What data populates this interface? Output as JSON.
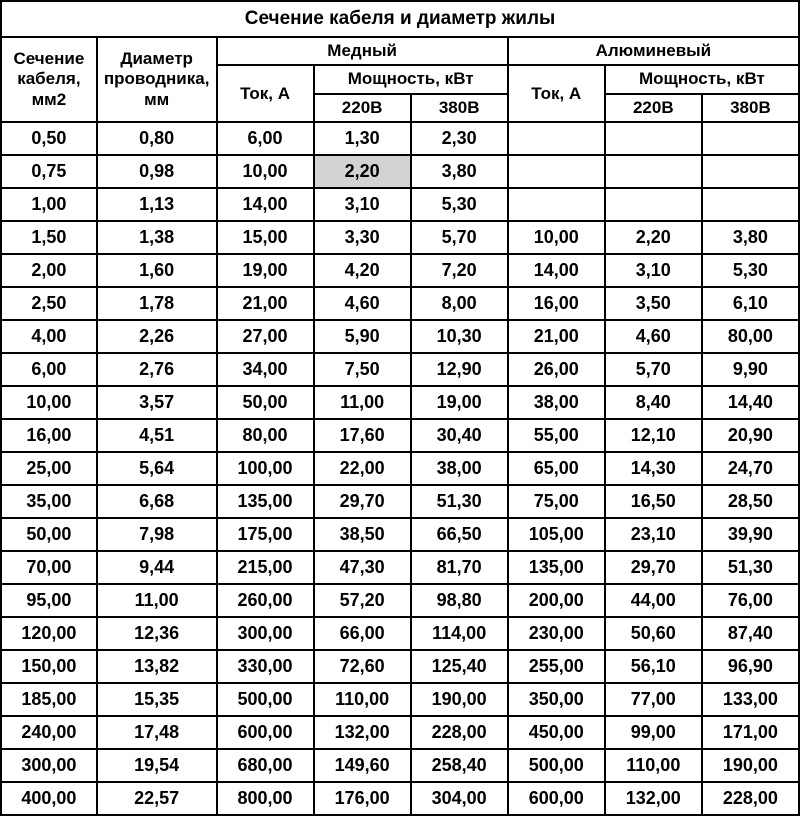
{
  "title": "Сечение кабеля и диаметр жилы",
  "headers": {
    "section": "Сечение кабеля, мм2",
    "diameter": "Диаметр проводника, мм",
    "copper": "Медный",
    "aluminum": "Алюминевый",
    "current": "Ток, А",
    "power": "Мощность, кВт",
    "v220": "220В",
    "v380": "380В"
  },
  "styling": {
    "background_color": "#ffffff",
    "border_color": "#000000",
    "highlight_color": "#d3d3d3",
    "font_family": "Arial",
    "title_fontsize": 19,
    "header_fontsize": 17,
    "data_fontsize": 18,
    "font_weight": "bold"
  },
  "highlighted_cell": {
    "row": 1,
    "col": "copper_220"
  },
  "rows": [
    {
      "section": "0,50",
      "diameter": "0,80",
      "copper_current": "6,00",
      "copper_220": "1,30",
      "copper_380": "2,30",
      "alum_current": "",
      "alum_220": "",
      "alum_380": ""
    },
    {
      "section": "0,75",
      "diameter": "0,98",
      "copper_current": "10,00",
      "copper_220": "2,20",
      "copper_380": "3,80",
      "alum_current": "",
      "alum_220": "",
      "alum_380": ""
    },
    {
      "section": "1,00",
      "diameter": "1,13",
      "copper_current": "14,00",
      "copper_220": "3,10",
      "copper_380": "5,30",
      "alum_current": "",
      "alum_220": "",
      "alum_380": ""
    },
    {
      "section": "1,50",
      "diameter": "1,38",
      "copper_current": "15,00",
      "copper_220": "3,30",
      "copper_380": "5,70",
      "alum_current": "10,00",
      "alum_220": "2,20",
      "alum_380": "3,80"
    },
    {
      "section": "2,00",
      "diameter": "1,60",
      "copper_current": "19,00",
      "copper_220": "4,20",
      "copper_380": "7,20",
      "alum_current": "14,00",
      "alum_220": "3,10",
      "alum_380": "5,30"
    },
    {
      "section": "2,50",
      "diameter": "1,78",
      "copper_current": "21,00",
      "copper_220": "4,60",
      "copper_380": "8,00",
      "alum_current": "16,00",
      "alum_220": "3,50",
      "alum_380": "6,10"
    },
    {
      "section": "4,00",
      "diameter": "2,26",
      "copper_current": "27,00",
      "copper_220": "5,90",
      "copper_380": "10,30",
      "alum_current": "21,00",
      "alum_220": "4,60",
      "alum_380": "80,00"
    },
    {
      "section": "6,00",
      "diameter": "2,76",
      "copper_current": "34,00",
      "copper_220": "7,50",
      "copper_380": "12,90",
      "alum_current": "26,00",
      "alum_220": "5,70",
      "alum_380": "9,90"
    },
    {
      "section": "10,00",
      "diameter": "3,57",
      "copper_current": "50,00",
      "copper_220": "11,00",
      "copper_380": "19,00",
      "alum_current": "38,00",
      "alum_220": "8,40",
      "alum_380": "14,40"
    },
    {
      "section": "16,00",
      "diameter": "4,51",
      "copper_current": "80,00",
      "copper_220": "17,60",
      "copper_380": "30,40",
      "alum_current": "55,00",
      "alum_220": "12,10",
      "alum_380": "20,90"
    },
    {
      "section": "25,00",
      "diameter": "5,64",
      "copper_current": "100,00",
      "copper_220": "22,00",
      "copper_380": "38,00",
      "alum_current": "65,00",
      "alum_220": "14,30",
      "alum_380": "24,70"
    },
    {
      "section": "35,00",
      "diameter": "6,68",
      "copper_current": "135,00",
      "copper_220": "29,70",
      "copper_380": "51,30",
      "alum_current": "75,00",
      "alum_220": "16,50",
      "alum_380": "28,50"
    },
    {
      "section": "50,00",
      "diameter": "7,98",
      "copper_current": "175,00",
      "copper_220": "38,50",
      "copper_380": "66,50",
      "alum_current": "105,00",
      "alum_220": "23,10",
      "alum_380": "39,90"
    },
    {
      "section": "70,00",
      "diameter": "9,44",
      "copper_current": "215,00",
      "copper_220": "47,30",
      "copper_380": "81,70",
      "alum_current": "135,00",
      "alum_220": "29,70",
      "alum_380": "51,30"
    },
    {
      "section": "95,00",
      "diameter": "11,00",
      "copper_current": "260,00",
      "copper_220": "57,20",
      "copper_380": "98,80",
      "alum_current": "200,00",
      "alum_220": "44,00",
      "alum_380": "76,00"
    },
    {
      "section": "120,00",
      "diameter": "12,36",
      "copper_current": "300,00",
      "copper_220": "66,00",
      "copper_380": "114,00",
      "alum_current": "230,00",
      "alum_220": "50,60",
      "alum_380": "87,40"
    },
    {
      "section": "150,00",
      "diameter": "13,82",
      "copper_current": "330,00",
      "copper_220": "72,60",
      "copper_380": "125,40",
      "alum_current": "255,00",
      "alum_220": "56,10",
      "alum_380": "96,90"
    },
    {
      "section": "185,00",
      "diameter": "15,35",
      "copper_current": "500,00",
      "copper_220": "110,00",
      "copper_380": "190,00",
      "alum_current": "350,00",
      "alum_220": "77,00",
      "alum_380": "133,00"
    },
    {
      "section": "240,00",
      "diameter": "17,48",
      "copper_current": "600,00",
      "copper_220": "132,00",
      "copper_380": "228,00",
      "alum_current": "450,00",
      "alum_220": "99,00",
      "alum_380": "171,00"
    },
    {
      "section": "300,00",
      "diameter": "19,54",
      "copper_current": "680,00",
      "copper_220": "149,60",
      "copper_380": "258,40",
      "alum_current": "500,00",
      "alum_220": "110,00",
      "alum_380": "190,00"
    },
    {
      "section": "400,00",
      "diameter": "22,57",
      "copper_current": "800,00",
      "copper_220": "176,00",
      "copper_380": "304,00",
      "alum_current": "600,00",
      "alum_220": "132,00",
      "alum_380": "228,00"
    }
  ]
}
